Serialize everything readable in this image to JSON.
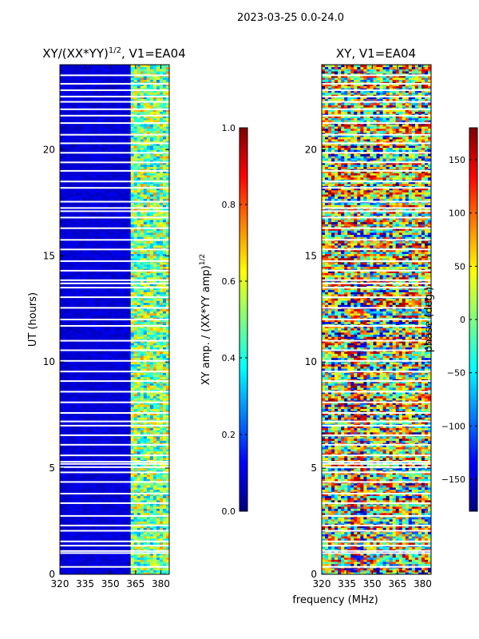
{
  "suptitle": "2023-03-25 0.0-24.0",
  "colors": {
    "jet": [
      "#00007f",
      "#0000ff",
      "#007fff",
      "#00ffff",
      "#7fff7f",
      "#ffff00",
      "#ff7f00",
      "#ff0000",
      "#7f0000"
    ],
    "gap": "#ffffff",
    "frame": "#000000"
  },
  "chart_data": [
    {
      "type": "heatmap",
      "panel": "left",
      "title_main": "XY/(XX*YY)",
      "title_sup": "1/2",
      "title_tail": ", V1=EA04",
      "xlabel": "",
      "ylabel": "UT (hours)",
      "xlim": [
        320,
        385
      ],
      "ylim": [
        0,
        24
      ],
      "xticks": [
        320,
        335,
        350,
        365,
        380
      ],
      "yticks": [
        0,
        5,
        10,
        15,
        20
      ],
      "colorbar": {
        "label_main": "XY amp. / (XX*YY amp)",
        "label_sup": "1/2",
        "range": [
          0.0,
          1.0
        ],
        "ticks": [
          "0.0",
          "0.2",
          "0.4",
          "0.6",
          "0.8",
          "1.0"
        ],
        "tick_values": [
          0.0,
          0.2,
          0.4,
          0.6,
          0.8,
          1.0
        ]
      },
      "description": "normalized amplitude; low (~0.05) below 362 MHz, 0.2-0.8 in 362-385 MHz band",
      "band_regions": [
        {
          "from": 320,
          "to": 362,
          "level": 0.06
        },
        {
          "from": 362,
          "to": 385,
          "level": 0.45
        }
      ]
    },
    {
      "type": "heatmap",
      "panel": "right",
      "title_main": "XY, V1=EA04",
      "xlabel": "frequency (MHz)",
      "ylabel": "",
      "xlim": [
        320,
        385
      ],
      "ylim": [
        0,
        24
      ],
      "xticks": [
        320,
        335,
        350,
        365,
        380
      ],
      "yticks": [
        0,
        5,
        10,
        15,
        20
      ],
      "colorbar": {
        "label_main": "phase (deg.)",
        "range": [
          -180,
          180
        ],
        "ticks": [
          "−150",
          "−100",
          "−50",
          "0",
          "50",
          "100",
          "150"
        ],
        "tick_values": [
          -150,
          -100,
          -50,
          0,
          50,
          100,
          150
        ]
      },
      "description": "phase values spanning -180 to 180 deg, noisy with horizontal banding"
    }
  ],
  "flagged_hours": [
    0.35,
    1.0,
    1.1,
    1.35,
    1.55,
    2.05,
    2.3,
    2.75,
    3.35,
    3.8,
    4.35,
    4.8,
    5.05,
    5.2,
    5.3,
    5.6,
    6.1,
    6.55,
    7.0,
    7.2,
    7.6,
    8.1,
    8.6,
    9.1,
    9.55,
    10.05,
    10.55,
    11.0,
    11.7,
    12.0,
    12.55,
    13.05,
    13.5,
    13.7,
    13.85,
    14.3,
    14.75,
    15.3,
    15.75,
    16.3,
    16.8,
    17.1,
    17.25,
    17.55,
    18.2,
    18.5,
    19.0,
    19.4,
    19.85,
    20.3,
    20.7,
    21.25,
    21.6,
    21.9,
    22.25,
    22.5,
    22.8,
    23.1,
    23.5
  ]
}
